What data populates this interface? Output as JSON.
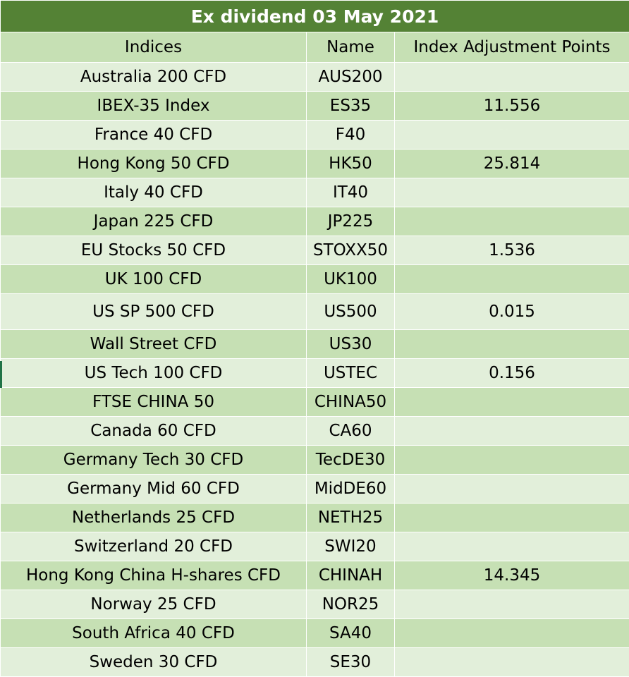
{
  "sheet": {
    "title": "Ex dividend 03 May 2021",
    "headers": [
      "Indices",
      "Name",
      "Index Adjustment Points"
    ],
    "rows": [
      [
        "Australia 200 CFD",
        "AUS200",
        ""
      ],
      [
        "IBEX-35 Index",
        "ES35",
        "11.556"
      ],
      [
        "France 40 CFD",
        "F40",
        ""
      ],
      [
        "Hong Kong 50 CFD",
        "HK50",
        "25.814"
      ],
      [
        "Italy 40 CFD",
        "IT40",
        ""
      ],
      [
        "Japan 225 CFD",
        "JP225",
        ""
      ],
      [
        "EU Stocks 50 CFD",
        "STOXX50",
        "1.536"
      ],
      [
        "UK 100 CFD",
        "UK100",
        ""
      ],
      [
        "US SP 500 CFD",
        "US500",
        "0.015"
      ],
      [
        "Wall Street CFD",
        "US30",
        ""
      ],
      [
        "US Tech 100 CFD",
        "USTEC",
        "0.156"
      ],
      [
        "FTSE CHINA 50",
        "CHINA50",
        ""
      ],
      [
        "Canada 60 CFD",
        "CA60",
        ""
      ],
      [
        "Germany Tech 30 CFD",
        "TecDE30",
        ""
      ],
      [
        "Germany Mid 60 CFD",
        "MidDE60",
        ""
      ],
      [
        "Netherlands 25 CFD",
        "NETH25",
        ""
      ],
      [
        "Switzerland 20 CFD",
        "SWI20",
        ""
      ],
      [
        "Hong Kong China H-shares CFD",
        "CHINAH",
        "14.345"
      ],
      [
        "Norway 25 CFD",
        "NOR25",
        ""
      ],
      [
        "South Africa 40 CFD",
        "SA40",
        ""
      ],
      [
        "Sweden 30 CFD",
        "SE30",
        ""
      ]
    ]
  },
  "colors": {
    "title_bg": "#548235",
    "row_dark": "#c6e0b4",
    "row_light": "#e2efda"
  }
}
